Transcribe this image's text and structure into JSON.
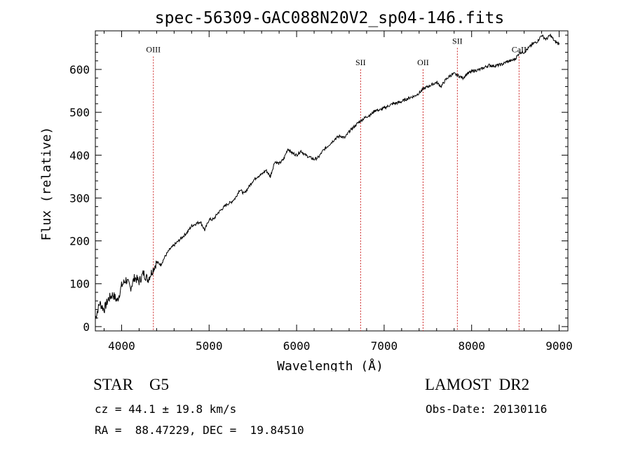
{
  "chart_data": {
    "type": "line",
    "title": "spec-56309-GAC088N20V2_sp04-146.fits",
    "xlabel": "Wavelength (Å)",
    "ylabel": "Flux (relative)",
    "xlim": [
      3700,
      9100
    ],
    "ylim": [
      -10,
      690
    ],
    "xticks": [
      4000,
      5000,
      6000,
      7000,
      8000,
      9000
    ],
    "yticks": [
      0,
      100,
      200,
      300,
      400,
      500,
      600
    ],
    "grid": false,
    "series": [
      {
        "color": "#000000",
        "x": [
          3700,
          3750,
          3800,
          3850,
          3900,
          3950,
          4000,
          4050,
          4100,
          4150,
          4200,
          4250,
          4300,
          4350,
          4400,
          4450,
          4500,
          4550,
          4600,
          4650,
          4700,
          4750,
          4800,
          4850,
          4900,
          4950,
          5000,
          5050,
          5100,
          5150,
          5200,
          5250,
          5300,
          5350,
          5400,
          5450,
          5500,
          5550,
          5600,
          5650,
          5700,
          5750,
          5800,
          5850,
          5900,
          5950,
          6000,
          6050,
          6100,
          6150,
          6200,
          6250,
          6300,
          6350,
          6400,
          6450,
          6500,
          6550,
          6600,
          6650,
          6700,
          6750,
          6800,
          6850,
          6900,
          6950,
          7000,
          7050,
          7100,
          7150,
          7200,
          7250,
          7300,
          7350,
          7400,
          7450,
          7500,
          7550,
          7600,
          7650,
          7700,
          7750,
          7800,
          7850,
          7900,
          7950,
          8000,
          8050,
          8100,
          8150,
          8200,
          8250,
          8300,
          8350,
          8400,
          8450,
          8500,
          8550,
          8600,
          8650,
          8700,
          8750,
          8800,
          8850,
          8900,
          8950,
          9000
        ],
        "y": [
          20,
          55,
          40,
          65,
          75,
          60,
          95,
          110,
          90,
          115,
          105,
          125,
          110,
          130,
          150,
          145,
          165,
          180,
          190,
          200,
          210,
          220,
          235,
          240,
          245,
          225,
          250,
          250,
          265,
          275,
          285,
          290,
          300,
          320,
          310,
          325,
          340,
          350,
          355,
          365,
          350,
          385,
          380,
          390,
          415,
          405,
          400,
          410,
          400,
          395,
          390,
          395,
          410,
          420,
          430,
          440,
          445,
          440,
          455,
          465,
          475,
          483,
          490,
          495,
          505,
          505,
          510,
          515,
          520,
          522,
          525,
          530,
          535,
          538,
          545,
          555,
          560,
          565,
          570,
          560,
          575,
          585,
          590,
          585,
          580,
          590,
          595,
          598,
          600,
          605,
          610,
          608,
          610,
          612,
          618,
          620,
          625,
          640,
          640,
          650,
          660,
          665,
          680,
          670,
          680,
          665,
          660
        ]
      }
    ],
    "annotations": [
      {
        "label": "OIII",
        "x": 4363,
        "label_y": 640
      },
      {
        "label": "SII",
        "x": 6731,
        "label_y": 610
      },
      {
        "label": "OII",
        "x": 7445,
        "label_y": 610
      },
      {
        "label": "SII",
        "x": 7837,
        "label_y": 660
      },
      {
        "label": "CaII",
        "x": 8542,
        "label_y": 640
      }
    ]
  },
  "info": {
    "object_class": "STAR    G5",
    "survey": "LAMOST  DR2",
    "velocity": "cz = 44.1 ± 19.8 km/s",
    "obs_date": "Obs-Date: 20130116",
    "coords": "RA =  88.47229, DEC =  19.84510"
  },
  "colors": {
    "spectrum": "#000000",
    "line_marker": "#cc2222",
    "axes": "#000000"
  }
}
